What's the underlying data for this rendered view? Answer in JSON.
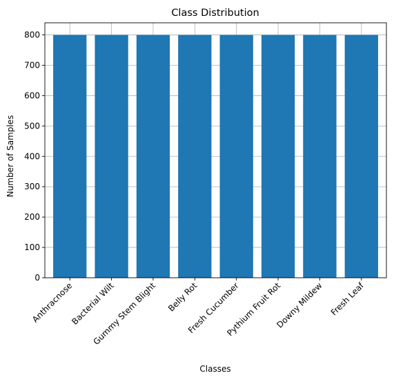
{
  "chart_data": {
    "type": "bar",
    "title": "Class Distribution",
    "xlabel": "Classes",
    "ylabel": "Number of Samples",
    "categories": [
      "Anthracnose",
      "Bacterial Wilt",
      "Gummy Stem Blight",
      "Belly Rot",
      "Fresh Cucumber",
      "Pythium Fruit Rot",
      "Downy Mildew",
      "Fresh Leaf"
    ],
    "values": [
      800,
      800,
      800,
      800,
      800,
      800,
      800,
      800
    ],
    "ylim": [
      0,
      840
    ],
    "yticks": [
      0,
      100,
      200,
      300,
      400,
      500,
      600,
      700,
      800
    ],
    "grid": true,
    "bar_color": "#1f77b4",
    "xtick_rotation": 45
  }
}
